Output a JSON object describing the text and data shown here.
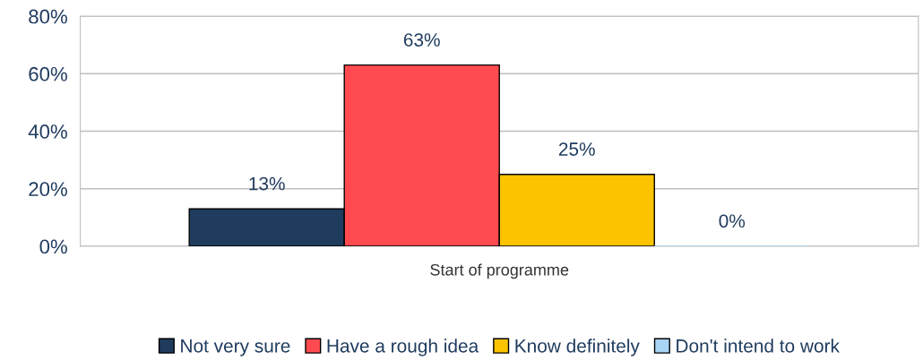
{
  "chart_data": {
    "type": "bar",
    "categories": [
      "Start of programme"
    ],
    "series": [
      {
        "name": "Not very sure",
        "color": "#1f3b5e",
        "values": [
          13
        ],
        "value_labels": [
          "13%"
        ]
      },
      {
        "name": "Have a rough idea",
        "color": "#ff4b4f",
        "values": [
          63
        ],
        "value_labels": [
          "63%"
        ]
      },
      {
        "name": "Know definitely",
        "color": "#fcc400",
        "values": [
          25
        ],
        "value_labels": [
          "25%"
        ]
      },
      {
        "name": "Don't intend to work",
        "color": "#a9d4f5",
        "values": [
          0
        ],
        "value_labels": [
          "0%"
        ]
      }
    ],
    "ylim": [
      0,
      80
    ],
    "yticks": [
      {
        "value": 0,
        "label": "0%"
      },
      {
        "value": 20,
        "label": "20%"
      },
      {
        "value": 40,
        "label": "40%"
      },
      {
        "value": 60,
        "label": "60%"
      },
      {
        "value": 80,
        "label": "80%"
      }
    ],
    "grid": "y",
    "legend": "bottom"
  }
}
